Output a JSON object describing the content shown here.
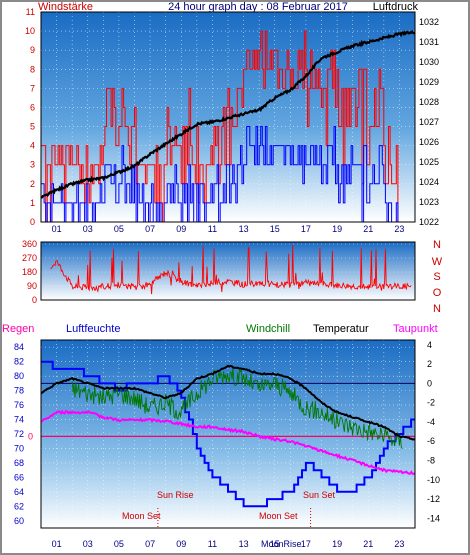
{
  "header": {
    "left_label": "Windstärke",
    "title": "24 hour graph day : 08 Februar 2017",
    "right_label": "Luftdruck"
  },
  "x_axis": {
    "tick_labels": [
      "01",
      "03",
      "05",
      "07",
      "09",
      "11",
      "13",
      "15",
      "17",
      "19",
      "21",
      "23"
    ]
  },
  "lower_header": {
    "regen": "Regen",
    "luftfeuchte": "Luftfeuchte",
    "windchill": "Windchill",
    "temperatur": "Temperatur",
    "taupunkt": "Taupunkt"
  },
  "annotations": {
    "sun_rise_left": "Sun Rise",
    "moon_set_left": "Moon Set",
    "sun_set": "Sun Set",
    "moon_set_right": "Moon Set",
    "moon_rise": "MoonRise"
  },
  "colors": {
    "wind": "#ff0000",
    "gust_low": "#0000ff",
    "pressure": "#000000",
    "humidity": "#0000ff",
    "windchill": "#007700",
    "temperature": "#000000",
    "dewpoint": "#ff00ff",
    "rain": "#ff0066",
    "sky_top": "#1f72c8",
    "sky_bottom": "#ffffff"
  },
  "chart_data": [
    {
      "type": "line",
      "title": "24 hour graph day : 08 Februar 2017",
      "y_left_label": "Windstärke",
      "y_right_label": "Luftdruck",
      "x_unit": "hour",
      "xlim": [
        0,
        24
      ],
      "ylim_left": [
        0,
        11
      ],
      "ylim_right": [
        1022,
        1032.5
      ],
      "y_left_ticks": [
        0,
        1,
        2,
        3,
        4,
        5,
        6,
        7,
        8,
        9,
        10,
        11
      ],
      "y_right_ticks": [
        1022,
        1023,
        1024,
        1025,
        1026,
        1027,
        1028,
        1029,
        1030,
        1031,
        1032
      ],
      "grid": true,
      "series": [
        {
          "name": "Luftdruck",
          "axis": "right",
          "x": [
            0,
            1,
            2,
            3,
            4,
            5,
            6,
            7,
            8,
            9,
            10,
            11,
            12,
            13,
            14,
            15,
            16,
            17,
            18,
            19,
            20,
            21,
            22,
            23,
            24
          ],
          "values": [
            1023.2,
            1023.6,
            1023.9,
            1024.1,
            1024.2,
            1024.5,
            1024.8,
            1025.4,
            1025.9,
            1026.4,
            1026.9,
            1027.0,
            1027.2,
            1027.4,
            1027.6,
            1028.2,
            1028.6,
            1029.3,
            1030.2,
            1030.5,
            1030.8,
            1031.0,
            1031.2,
            1031.4,
            1031.5
          ]
        }
      ]
    },
    {
      "type": "line",
      "ylim": [
        0,
        360
      ],
      "y_ticks": [
        0,
        90,
        180,
        270,
        360
      ],
      "y_right_tick_labels": [
        "N",
        "W",
        "S",
        "O",
        "N"
      ],
      "xlim": [
        0,
        24
      ],
      "series": [
        {
          "name": "Wind direction",
          "x": [
            0,
            1,
            2,
            3,
            4,
            5,
            6,
            7,
            8,
            9,
            10,
            11,
            12,
            13,
            14,
            15,
            16,
            17,
            18,
            19,
            20,
            21,
            22,
            23
          ],
          "values": [
            150,
            250,
            90,
            80,
            85,
            100,
            80,
            100,
            180,
            120,
            90,
            110,
            120,
            100,
            110,
            100,
            95,
            110,
            100,
            95,
            90,
            85,
            90,
            90
          ]
        }
      ]
    },
    {
      "type": "line",
      "xlim": [
        0,
        24
      ],
      "y_left_label": "Luftfeuchte",
      "y_left_ticks": [
        60,
        62,
        64,
        66,
        68,
        70,
        72,
        74,
        76,
        78,
        80,
        82,
        84
      ],
      "ylim_left": [
        59,
        85
      ],
      "y_right_label": "Temperatur",
      "y_right_ticks": [
        -14,
        -12,
        -10,
        -8,
        -6,
        -4,
        -2,
        0,
        2,
        4
      ],
      "ylim_right": [
        -15,
        4.5
      ],
      "regen_marker": "0",
      "series": [
        {
          "name": "Luftfeuchte",
          "axis": "left",
          "x": [
            0,
            1,
            2,
            3,
            4,
            5,
            6,
            7,
            8,
            9,
            10,
            11,
            12,
            13,
            14,
            15,
            16,
            17,
            18,
            19,
            20,
            21,
            22,
            23,
            24
          ],
          "values": [
            82,
            81,
            81,
            80,
            79,
            78,
            79,
            79,
            80,
            77,
            70,
            66,
            64,
            62,
            62,
            63,
            64,
            68,
            66,
            64,
            64,
            66,
            70,
            72,
            74
          ]
        },
        {
          "name": "Windchill",
          "axis": "right",
          "x": [
            0,
            1,
            2,
            3,
            4,
            5,
            6,
            7,
            8,
            9,
            10,
            11,
            12,
            13,
            14,
            15,
            16,
            17,
            18,
            19,
            20,
            21,
            22,
            23
          ],
          "values": [
            -1.5,
            -0.5,
            -0.5,
            -1.0,
            -1.5,
            -1.0,
            -1.5,
            -2.5,
            -2.0,
            -3.0,
            -1.0,
            0.5,
            1.0,
            0.5,
            -0.5,
            0.0,
            -1.0,
            -2.5,
            -3.0,
            -4.0,
            -4.5,
            -5.0,
            -5.5,
            -6.0
          ]
        },
        {
          "name": "Temperatur",
          "axis": "right",
          "x": [
            0,
            1,
            2,
            3,
            4,
            5,
            6,
            7,
            8,
            9,
            10,
            11,
            12,
            13,
            14,
            15,
            16,
            17,
            18,
            19,
            20,
            21,
            22,
            23,
            24
          ],
          "values": [
            -1.0,
            0.0,
            0.5,
            0.0,
            -0.5,
            -0.5,
            -0.5,
            -1.0,
            -1.5,
            -1.0,
            0.5,
            1.0,
            1.8,
            1.5,
            1.0,
            1.0,
            0.5,
            -0.5,
            -2.0,
            -3.0,
            -3.5,
            -4.0,
            -4.5,
            -5.5,
            -5.8
          ]
        },
        {
          "name": "Taupunkt",
          "axis": "right",
          "x": [
            0,
            1,
            2,
            3,
            4,
            5,
            6,
            7,
            8,
            9,
            10,
            11,
            12,
            13,
            14,
            15,
            16,
            17,
            18,
            19,
            20,
            21,
            22,
            23,
            24
          ],
          "values": [
            -4.0,
            -3.0,
            -3.0,
            -3.0,
            -3.5,
            -3.8,
            -3.8,
            -3.8,
            -3.9,
            -4.2,
            -4.5,
            -4.5,
            -4.8,
            -5.0,
            -5.5,
            -5.8,
            -6.0,
            -6.5,
            -7.0,
            -7.5,
            -8.0,
            -8.5,
            -9.0,
            -9.2,
            -9.3
          ]
        }
      ]
    }
  ]
}
